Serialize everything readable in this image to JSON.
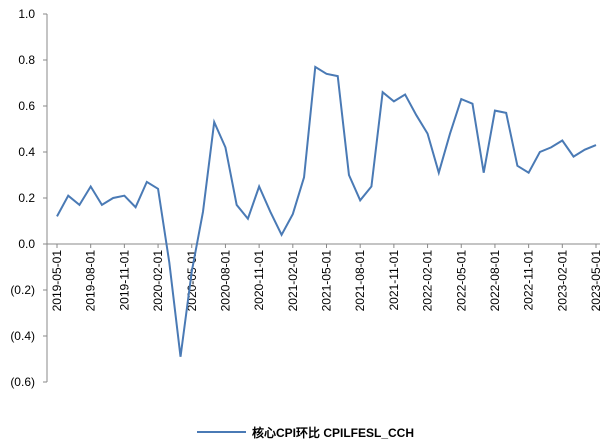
{
  "chart_data": {
    "type": "line",
    "categories": [
      "2019-05-01",
      null,
      null,
      "2019-08-01",
      null,
      null,
      "2019-11-01",
      null,
      null,
      "2020-02-01",
      null,
      null,
      "2020-05-01",
      null,
      null,
      "2020-08-01",
      null,
      null,
      "2020-11-01",
      null,
      null,
      "2021-02-01",
      null,
      null,
      "2021-05-01",
      null,
      null,
      "2021-08-01",
      null,
      null,
      "2021-11-01",
      null,
      null,
      "2022-02-01",
      null,
      null,
      "2022-05-01",
      null,
      null,
      "2022-08-01",
      null,
      null,
      "2022-11-01",
      null,
      null,
      "2023-02-01",
      null,
      null,
      "2023-05-01"
    ],
    "series": [
      {
        "name": "核心CPI环比 CPILFESL_CCH",
        "color": "#4a7ab5",
        "values": [
          0.12,
          0.21,
          0.17,
          0.25,
          0.17,
          0.2,
          0.21,
          0.16,
          0.27,
          0.24,
          -0.08,
          -0.49,
          -0.12,
          0.14,
          0.53,
          0.42,
          0.17,
          0.11,
          0.25,
          0.14,
          0.04,
          0.13,
          0.29,
          0.77,
          0.74,
          0.73,
          0.3,
          0.19,
          0.25,
          0.66,
          0.62,
          0.65,
          0.56,
          0.48,
          0.31,
          0.48,
          0.63,
          0.61,
          0.31,
          0.58,
          0.57,
          0.34,
          0.31,
          0.4,
          0.42,
          0.45,
          0.38,
          0.41,
          0.43
        ]
      }
    ],
    "ylim": [
      -0.6,
      1.0
    ],
    "yticks": [
      {
        "value": 1,
        "label": "1.0"
      },
      0.8,
      0.6,
      0.4,
      0.2,
      {
        "value": 0,
        "label": "0.0"
      },
      {
        "value": -0.2,
        "label": "(0.2)"
      },
      {
        "value": -0.4,
        "label": "(0.4)"
      },
      {
        "value": -0.6,
        "label": "(0.6)"
      }
    ],
    "negative_tick_color": "#ff0000",
    "grid": false,
    "legend": "bottom"
  }
}
